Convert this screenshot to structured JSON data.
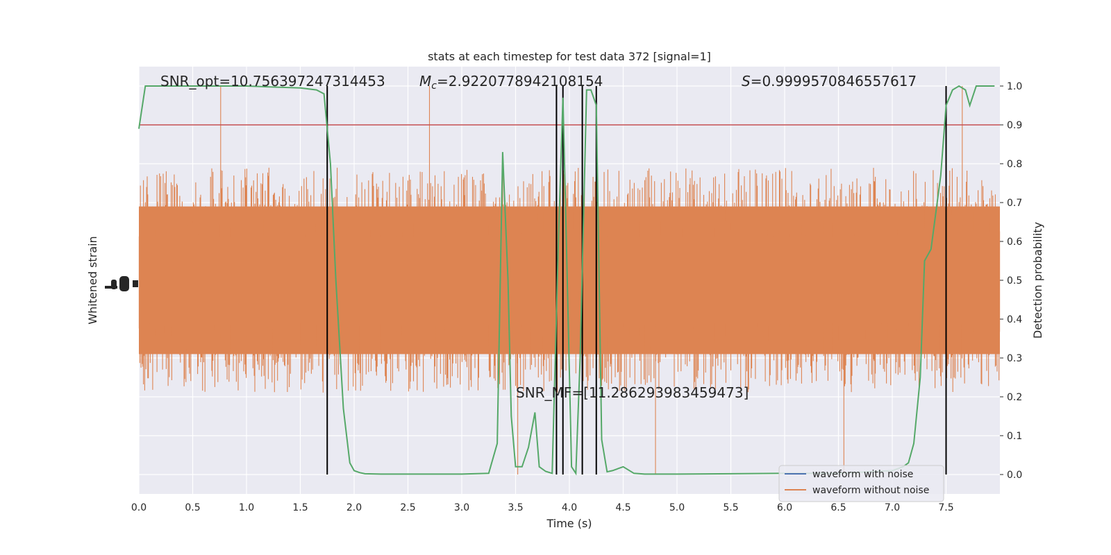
{
  "chart_data": {
    "type": "line",
    "title": "stats at each timestep for test data 372 [signal=1]",
    "xlabel": "Time (s)",
    "ylabel_left": "Whitened strain",
    "ylabel_right": "Detection probability",
    "xlim": [
      0,
      8.0
    ],
    "ylim_right": [
      -0.05,
      1.05
    ],
    "grid": true,
    "x_ticks": [
      "0.0",
      "0.5",
      "1.0",
      "1.5",
      "2.0",
      "2.5",
      "3.0",
      "3.5",
      "4.0",
      "4.5",
      "5.0",
      "5.5",
      "6.0",
      "6.5",
      "7.0",
      "7.5"
    ],
    "y_ticks_right": [
      "0.0",
      "0.1",
      "0.2",
      "0.3",
      "0.4",
      "0.5",
      "0.6",
      "0.7",
      "0.8",
      "0.9",
      "1.0"
    ],
    "legend": {
      "placement": "lower-right",
      "entries": [
        "waveform with noise",
        "waveform without noise"
      ]
    },
    "annotations": {
      "snr_opt": "SNR_opt=10.756397247314453",
      "mc_prefix": "M",
      "mc_sub": "c",
      "mc_value": "=2.9220778942108154",
      "s_prefix": "S",
      "s_value": "=0.9999570846557617",
      "snr_mf": "SNR_MF=[11.286293983459473]"
    },
    "threshold": 0.9,
    "vertical_lines_x": [
      1.75,
      3.88,
      3.94,
      4.12,
      4.25,
      7.5
    ],
    "series": [
      {
        "name": "waveform with noise",
        "color": "#4c72b0",
        "note": "hidden behind the orange series"
      },
      {
        "name": "waveform without noise",
        "color": "#dd8452",
        "band_center": 0.5,
        "core_half_width": 0.2,
        "spike_max": 1.0,
        "spike_min": 0.0
      },
      {
        "name": "detection probability",
        "color": "#55a868",
        "x": [
          0.0,
          0.06,
          0.2,
          0.5,
          1.0,
          1.5,
          1.65,
          1.72,
          1.78,
          1.83,
          1.9,
          1.96,
          2.0,
          2.05,
          2.1,
          2.25,
          2.5,
          3.0,
          3.25,
          3.33,
          3.38,
          3.43,
          3.46,
          3.5,
          3.56,
          3.62,
          3.68,
          3.72,
          3.78,
          3.84,
          3.9,
          3.94,
          3.97,
          4.02,
          4.06,
          4.1,
          4.16,
          4.2,
          4.25,
          4.3,
          4.35,
          4.4,
          4.5,
          4.6,
          4.7,
          5.0,
          5.5,
          6.0,
          6.5,
          7.0,
          7.1,
          7.15,
          7.2,
          7.26,
          7.3,
          7.36,
          7.45,
          7.5,
          7.56,
          7.62,
          7.68,
          7.72,
          7.78,
          7.84,
          7.95
        ],
        "y": [
          0.89,
          1.0,
          1.0,
          1.0,
          1.0,
          0.995,
          0.99,
          0.98,
          0.8,
          0.5,
          0.17,
          0.03,
          0.01,
          0.005,
          0.002,
          0.001,
          0.001,
          0.001,
          0.003,
          0.08,
          0.83,
          0.5,
          0.15,
          0.02,
          0.02,
          0.07,
          0.16,
          0.02,
          0.008,
          0.003,
          0.62,
          0.97,
          0.62,
          0.02,
          0.003,
          0.3,
          0.99,
          0.99,
          0.95,
          0.09,
          0.007,
          0.01,
          0.02,
          0.003,
          0.001,
          0.001,
          0.002,
          0.003,
          0.003,
          0.01,
          0.02,
          0.03,
          0.08,
          0.25,
          0.55,
          0.58,
          0.77,
          0.95,
          0.99,
          1.0,
          0.99,
          0.95,
          1.0,
          1.0,
          1.0
        ]
      }
    ]
  }
}
